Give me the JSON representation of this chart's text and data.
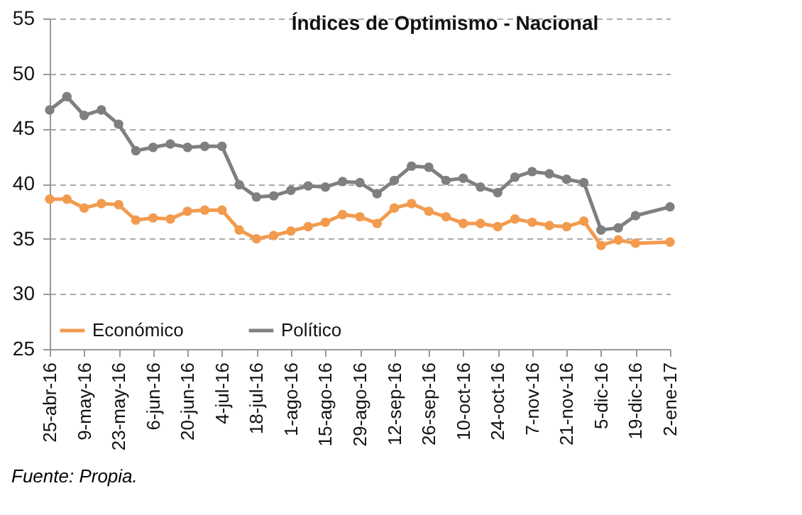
{
  "chart_data": {
    "type": "line",
    "title": "Índices de Optimismo  - Nacional",
    "annotations": [
      "Fuente: Propia."
    ],
    "x": [
      "2016-04-25",
      "2016-05-02",
      "2016-05-09",
      "2016-05-16",
      "2016-05-23",
      "2016-05-30",
      "2016-06-06",
      "2016-06-13",
      "2016-06-20",
      "2016-06-27",
      "2016-07-04",
      "2016-07-11",
      "2016-07-18",
      "2016-07-25",
      "2016-08-01",
      "2016-08-08",
      "2016-08-15",
      "2016-08-22",
      "2016-08-29",
      "2016-09-05",
      "2016-09-12",
      "2016-09-19",
      "2016-09-26",
      "2016-10-03",
      "2016-10-10",
      "2016-10-17",
      "2016-10-24",
      "2016-10-31",
      "2016-11-07",
      "2016-11-14",
      "2016-11-21",
      "2016-11-28",
      "2016-12-05",
      "2016-12-12",
      "2016-12-19",
      "2017-01-02"
    ],
    "series": [
      {
        "name": "Económico",
        "color": "#f29b4f",
        "values": [
          38.6,
          38.6,
          37.8,
          38.2,
          38.1,
          36.7,
          36.9,
          36.8,
          37.5,
          37.6,
          37.6,
          35.8,
          35.0,
          35.3,
          35.7,
          36.1,
          36.5,
          37.2,
          37.0,
          36.4,
          37.8,
          38.2,
          37.5,
          37.0,
          36.4,
          36.4,
          36.1,
          36.8,
          36.5,
          36.2,
          36.1,
          36.6,
          34.4,
          34.9,
          34.6,
          34.7
        ]
      },
      {
        "name": "Político",
        "color": "#7f7f7f",
        "values": [
          46.7,
          47.9,
          46.2,
          46.7,
          45.4,
          43.0,
          43.3,
          43.6,
          43.3,
          43.4,
          43.4,
          39.9,
          38.8,
          38.9,
          39.4,
          39.8,
          39.7,
          40.2,
          40.1,
          39.1,
          40.3,
          41.6,
          41.5,
          40.3,
          40.5,
          39.7,
          39.2,
          40.6,
          41.1,
          40.9,
          40.4,
          40.1,
          35.8,
          36.0,
          37.1,
          37.9
        ]
      }
    ],
    "xlim": [
      "2016-04-25",
      "2017-01-02"
    ],
    "xticks": [
      {
        "value": "2016-04-25",
        "label": "25-abr-16"
      },
      {
        "value": "2016-05-09",
        "label": "9-may-16"
      },
      {
        "value": "2016-05-23",
        "label": "23-may-16"
      },
      {
        "value": "2016-06-06",
        "label": "6-jun-16"
      },
      {
        "value": "2016-06-20",
        "label": "20-jun-16"
      },
      {
        "value": "2016-07-04",
        "label": "4-jul-16"
      },
      {
        "value": "2016-07-18",
        "label": "18-jul-16"
      },
      {
        "value": "2016-08-01",
        "label": "1-ago-16"
      },
      {
        "value": "2016-08-15",
        "label": "15-ago-16"
      },
      {
        "value": "2016-08-29",
        "label": "29-ago-16"
      },
      {
        "value": "2016-09-12",
        "label": "12-sep-16"
      },
      {
        "value": "2016-09-26",
        "label": "26-sep-16"
      },
      {
        "value": "2016-10-10",
        "label": "10-oct-16"
      },
      {
        "value": "2016-10-24",
        "label": "24-oct-16"
      },
      {
        "value": "2016-11-07",
        "label": "7-nov-16"
      },
      {
        "value": "2016-11-21",
        "label": "21-nov-16"
      },
      {
        "value": "2016-12-05",
        "label": "5-dic-16"
      },
      {
        "value": "2016-12-19",
        "label": "19-dic-16"
      },
      {
        "value": "2017-01-02",
        "label": "2-ene-17"
      }
    ],
    "ylim": [
      25,
      55
    ],
    "yticks": [
      25,
      30,
      35,
      40,
      45,
      50,
      55
    ],
    "grid": "y",
    "legend": "bottom left",
    "marker": "circle",
    "line_style": "solid"
  }
}
